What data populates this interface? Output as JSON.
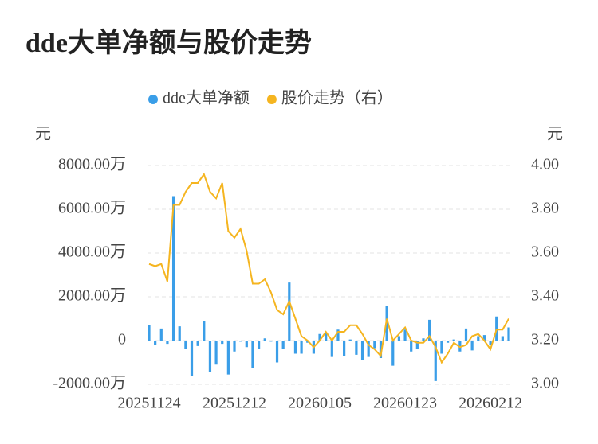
{
  "chart_data": {
    "type": "combo",
    "title": "dde大单净额与股价走势",
    "y_label": "元",
    "y2_label": "元",
    "categories": [
      "20251124",
      null,
      null,
      null,
      null,
      null,
      null,
      null,
      null,
      null,
      null,
      null,
      null,
      null,
      "20251212",
      null,
      null,
      null,
      null,
      null,
      null,
      null,
      null,
      null,
      null,
      null,
      null,
      null,
      "20260105",
      null,
      null,
      null,
      null,
      null,
      null,
      null,
      null,
      null,
      null,
      null,
      null,
      null,
      "20260123",
      null,
      null,
      null,
      null,
      null,
      null,
      null,
      null,
      null,
      null,
      null,
      null,
      null,
      "20260212",
      null,
      null,
      null
    ],
    "series": [
      {
        "name": "dde大单净额",
        "type": "bar",
        "color": "#3a9ee8",
        "axis": "y",
        "values": [
          700,
          -200,
          550,
          -150,
          6600,
          650,
          -400,
          -1600,
          -250,
          900,
          -1450,
          -1100,
          -150,
          -1550,
          -500,
          -50,
          -300,
          -1250,
          -400,
          100,
          -50,
          -1000,
          -400,
          2650,
          -600,
          -600,
          -100,
          -600,
          300,
          350,
          -750,
          500,
          -700,
          50,
          -650,
          -900,
          -750,
          -350,
          -800,
          1600,
          -1150,
          200,
          500,
          -500,
          -400,
          100,
          950,
          -1850,
          -600,
          -100,
          50,
          -500,
          550,
          -450,
          200,
          250,
          -200,
          1100,
          200,
          600
        ]
      },
      {
        "name": "股价走势（右）",
        "type": "line",
        "color": "#f5b520",
        "axis": "y2",
        "values": [
          3.55,
          3.54,
          3.55,
          3.47,
          3.82,
          3.82,
          3.88,
          3.92,
          3.92,
          3.96,
          3.88,
          3.85,
          3.92,
          3.7,
          3.67,
          3.71,
          3.61,
          3.46,
          3.46,
          3.48,
          3.42,
          3.34,
          3.32,
          3.38,
          3.3,
          3.22,
          3.2,
          3.17,
          3.2,
          3.24,
          3.2,
          3.24,
          3.24,
          3.27,
          3.27,
          3.23,
          3.18,
          3.16,
          3.13,
          3.3,
          3.2,
          3.23,
          3.26,
          3.2,
          3.19,
          3.19,
          3.22,
          3.17,
          3.1,
          3.14,
          3.19,
          3.17,
          3.18,
          3.22,
          3.23,
          3.2,
          3.16,
          3.25,
          3.25,
          3.3
        ]
      }
    ],
    "ylim": [
      -2000,
      8000
    ],
    "yticks": [
      {
        "value": -2000,
        "label": "-2000.00万"
      },
      0,
      {
        "value": 2000,
        "label": "2000.00万"
      },
      {
        "value": 4000,
        "label": "4000.00万"
      },
      {
        "value": 6000,
        "label": "6000.00万"
      },
      {
        "value": 8000,
        "label": "8000.00万"
      }
    ],
    "y2lim": [
      3.0,
      4.0
    ],
    "y2ticks": [
      {
        "value": 3.0,
        "label": "3.00"
      },
      {
        "value": 3.2,
        "label": "3.20"
      },
      {
        "value": 3.4,
        "label": "3.40"
      },
      {
        "value": 3.6,
        "label": "3.60"
      },
      {
        "value": 3.8,
        "label": "3.80"
      },
      {
        "value": 4.0,
        "label": "4.00"
      }
    ],
    "grid": true
  }
}
